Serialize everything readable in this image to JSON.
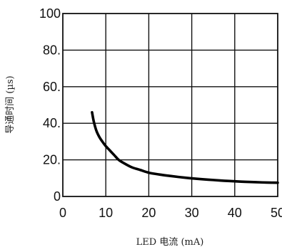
{
  "chart_data": {
    "type": "line",
    "xlabel": "LED 电流 (mA)",
    "ylabel": "导通时间 (µs)",
    "xlim": [
      0,
      50
    ],
    "ylim": [
      0,
      100
    ],
    "x_ticks": [
      "0",
      "10",
      "20",
      "30",
      "40",
      "50"
    ],
    "y_ticks": [
      "0",
      "20.",
      "40.",
      "60.",
      "80.",
      "100"
    ],
    "grid": true,
    "series": [
      {
        "x": [
          6.8,
          7.2,
          7.8,
          8.5,
          9.2,
          10,
          11,
          12,
          13,
          14,
          16,
          18,
          20,
          22.5,
          25,
          27.5,
          30,
          32.5,
          35,
          37.5,
          40,
          42.5,
          45,
          47.5,
          50
        ],
        "y": [
          46,
          41,
          36,
          32.5,
          30,
          27.5,
          25,
          22.5,
          20,
          18.5,
          16,
          14.5,
          13,
          12,
          11.2,
          10.5,
          9.9,
          9.4,
          9.0,
          8.6,
          8.3,
          8.0,
          7.8,
          7.6,
          7.5
        ],
        "color": "#000000"
      }
    ]
  }
}
